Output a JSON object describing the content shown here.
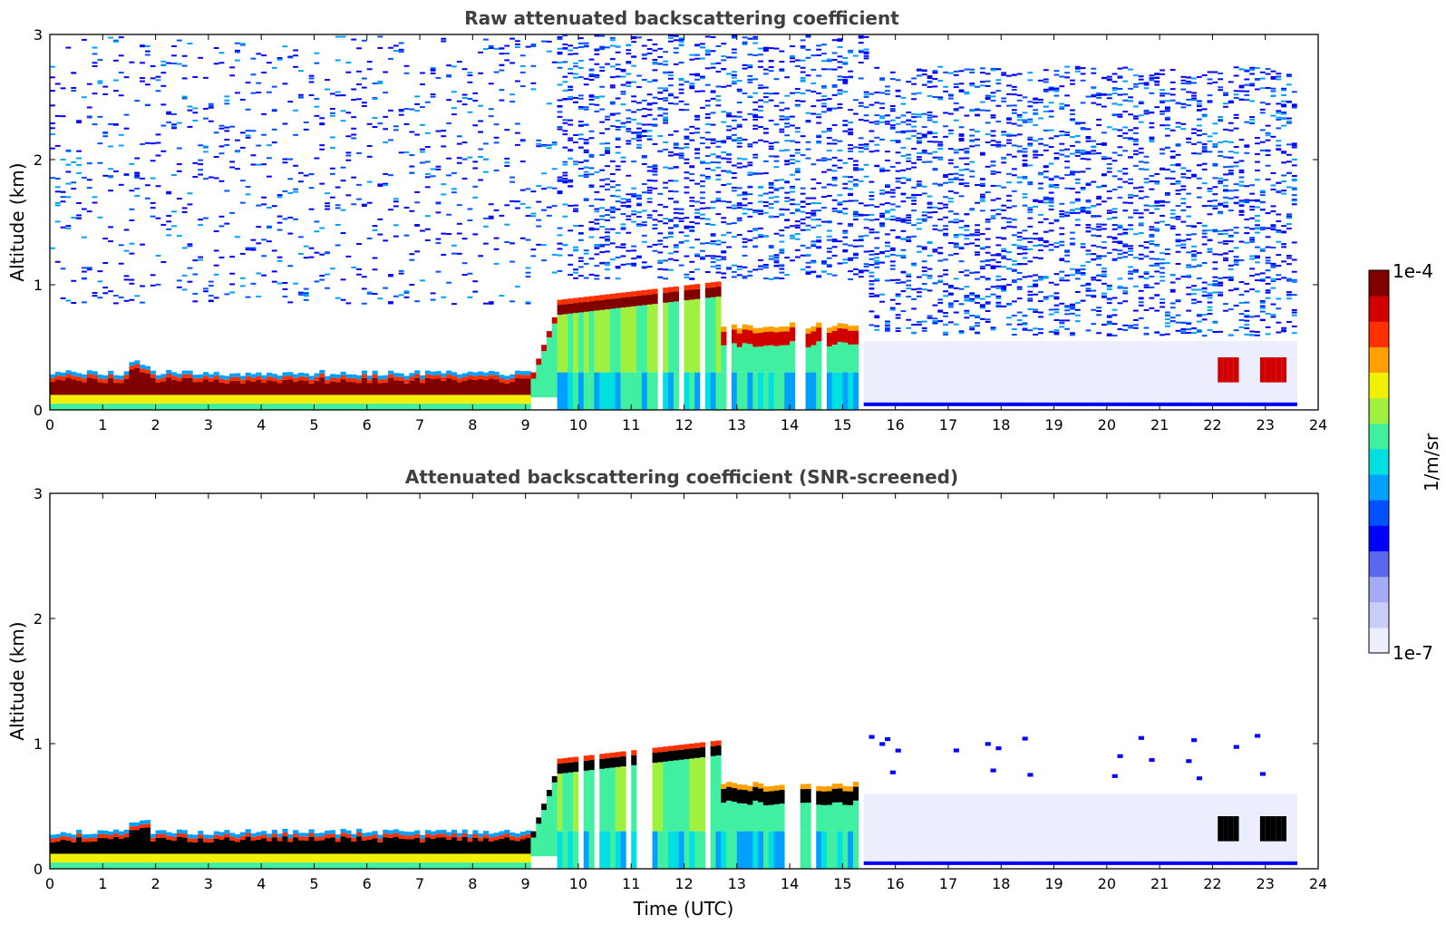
{
  "chart_data": [
    {
      "type": "heatmap",
      "title": "Raw attenuated backscattering coefficient",
      "xlabel": "",
      "ylabel": "Altitude (km)",
      "xlim": [
        0,
        24
      ],
      "ylim": [
        0,
        3
      ],
      "xticks": [
        "0",
        "1",
        "2",
        "3",
        "4",
        "5",
        "6",
        "7",
        "8",
        "9",
        "10",
        "11",
        "12",
        "13",
        "14",
        "15",
        "16",
        "17",
        "18",
        "19",
        "20",
        "21",
        "22",
        "23",
        "24"
      ],
      "yticks": [
        "0",
        "1",
        "2",
        "3"
      ],
      "features": [
        {
          "name": "boundary layer aerosol",
          "t": [
            0,
            9.1
          ],
          "alt": [
            0,
            0.3
          ],
          "level": "high"
        },
        {
          "name": "rising layer",
          "t": [
            9.1,
            9.6
          ],
          "alt": [
            0.2,
            0.85
          ],
          "level": "high"
        },
        {
          "name": "cloud deck",
          "t": [
            9.6,
            12.7
          ],
          "alt": [
            0,
            1.0
          ],
          "level": "high top"
        },
        {
          "name": "lower cloud",
          "t": [
            12.7,
            15.3
          ],
          "alt": [
            0,
            0.7
          ],
          "level": "high top"
        },
        {
          "name": "clouds",
          "t": [
            22,
            23.4
          ],
          "alt": [
            0.2,
            0.45
          ],
          "level": "high"
        },
        {
          "name": "noise",
          "t": [
            0,
            23.6
          ],
          "alt": [
            0.5,
            3
          ],
          "level": "low"
        }
      ]
    },
    {
      "type": "heatmap",
      "title": "Attenuated backscattering coefficient (SNR-screened)",
      "xlabel": "Time (UTC)",
      "ylabel": "Altitude (km)",
      "xlim": [
        0,
        24
      ],
      "ylim": [
        0,
        3
      ],
      "xticks": [
        "0",
        "1",
        "2",
        "3",
        "4",
        "5",
        "6",
        "7",
        "8",
        "9",
        "10",
        "11",
        "12",
        "13",
        "14",
        "15",
        "16",
        "17",
        "18",
        "19",
        "20",
        "21",
        "22",
        "23",
        "24"
      ],
      "yticks": [
        "0",
        "1",
        "2",
        "3"
      ],
      "features": [
        {
          "name": "boundary layer aerosol",
          "t": [
            0,
            9.1
          ],
          "alt": [
            0,
            0.3
          ],
          "level": "saturated"
        },
        {
          "name": "cloud deck",
          "t": [
            9.6,
            12.7
          ],
          "alt": [
            0,
            1.0
          ],
          "level": "saturated top"
        },
        {
          "name": "lower cloud",
          "t": [
            12.7,
            15.3
          ],
          "alt": [
            0,
            0.7
          ],
          "level": "saturated top"
        },
        {
          "name": "screened low signal",
          "t": [
            15.4,
            23.6
          ],
          "alt": [
            0,
            0.6
          ],
          "level": "low"
        }
      ]
    }
  ],
  "colorbar": {
    "label": "1/m/sr",
    "max_label": "1e-4",
    "min_label": "1e-7",
    "colors": [
      "#eceefd",
      "#c8ccf8",
      "#a4abf3",
      "#5a68ee",
      "#0000ff",
      "#0050ff",
      "#00a0ff",
      "#00e0e0",
      "#40f0a0",
      "#a0f040",
      "#f0f000",
      "#ffa000",
      "#ff3000",
      "#d00000",
      "#800000"
    ]
  }
}
